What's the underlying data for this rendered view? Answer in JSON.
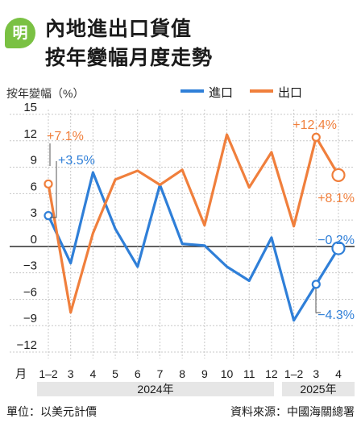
{
  "brand": {
    "logo_text": "明",
    "accent_color": "#7ac143"
  },
  "title_lines": [
    "內地進出口貨值",
    "按年變幅月度走勢"
  ],
  "footer": {
    "unit": "單位：以美元計價",
    "source": "資料來源：中國海關總署"
  },
  "chart_data": {
    "type": "line",
    "ylabel": "按年變幅（%）",
    "xlabel": "",
    "month_label": "月",
    "categories": [
      "1–2",
      "3",
      "4",
      "5",
      "6",
      "7",
      "8",
      "9",
      "10",
      "11",
      "12",
      "1–2",
      "3",
      "4"
    ],
    "year_groups": [
      {
        "label": "2024年",
        "from": 0,
        "to": 10
      },
      {
        "label": "2025年",
        "from": 11,
        "to": 13
      }
    ],
    "ylim": [
      -12,
      15
    ],
    "yticks": [
      15,
      12,
      9,
      6,
      3,
      0,
      -3,
      -6,
      -9,
      -12
    ],
    "grid": true,
    "legend_position": "top-right",
    "series": [
      {
        "name": "進口",
        "color": "#2f7fd8",
        "values": [
          3.5,
          -1.9,
          8.4,
          2.0,
          -2.3,
          7.0,
          0.3,
          0.1,
          -2.3,
          -3.9,
          1.0,
          -8.4,
          -4.3,
          -0.2
        ]
      },
      {
        "name": "出口",
        "color": "#f07f3c",
        "values": [
          7.1,
          -7.5,
          1.5,
          7.6,
          8.6,
          7.0,
          8.7,
          2.4,
          12.7,
          6.7,
          10.7,
          2.3,
          12.4,
          8.1
        ]
      }
    ],
    "annotations": [
      {
        "text": "+7.1%",
        "series": 1,
        "index": 0
      },
      {
        "text": "+3.5%",
        "series": 0,
        "index": 0
      },
      {
        "text": "+12.4%",
        "series": 1,
        "index": 12
      },
      {
        "text": "+8.1%",
        "series": 1,
        "index": 13
      },
      {
        "text": "−0.2%",
        "series": 0,
        "index": 13
      },
      {
        "text": "−4.3%",
        "series": 0,
        "index": 12
      }
    ]
  }
}
